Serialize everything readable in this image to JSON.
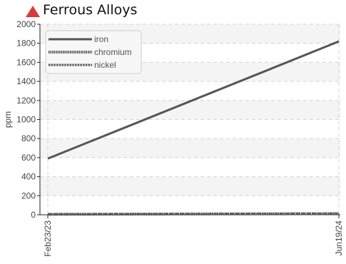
{
  "colors": {
    "title_marker": "#d63b3b",
    "series": "#555555",
    "grid": "#d4d4d4",
    "band": "#f4f4f4",
    "axis": "#222222"
  },
  "chart_data": {
    "type": "line",
    "title": "Ferrous Alloys",
    "xlabel": "",
    "ylabel": "ppm",
    "x": [
      "Feb23/23",
      "Jun19/24"
    ],
    "xlim": [
      "Feb23/23",
      "Jun19/24"
    ],
    "ylim": [
      0,
      2000
    ],
    "y_ticks": [
      0,
      200,
      400,
      600,
      800,
      1000,
      1200,
      1400,
      1600,
      1800,
      2000
    ],
    "grid": true,
    "legend_position": "top-left",
    "series": [
      {
        "name": "iron",
        "values": [
          590,
          1820
        ],
        "style": "solid"
      },
      {
        "name": "chromium",
        "values": [
          5,
          12
        ],
        "style": "dotted"
      },
      {
        "name": "nickel",
        "values": [
          5,
          10
        ],
        "style": "dashed"
      }
    ]
  }
}
